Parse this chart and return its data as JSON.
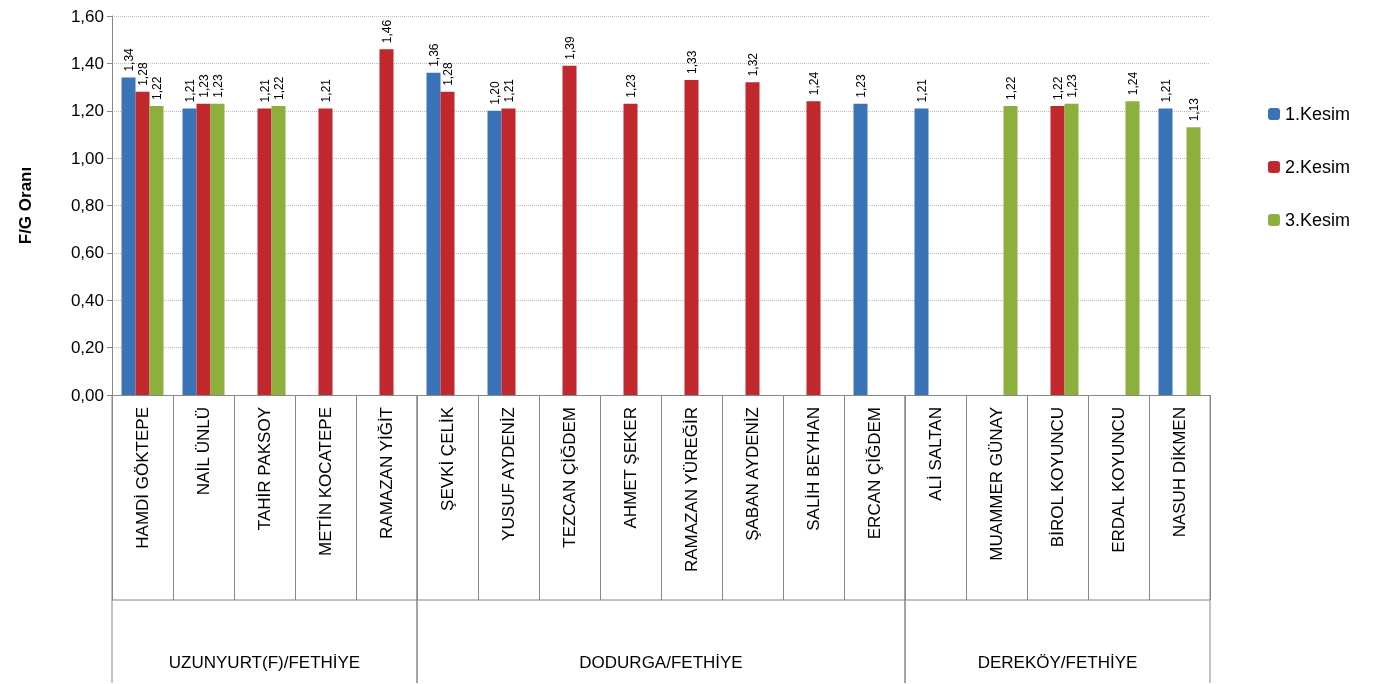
{
  "chart_data": {
    "type": "bar",
    "ylabel": "F/G Oranı",
    "categories": [
      "HAMDİ GÖKTEPE",
      "NAİL ÜNLÜ",
      "TAHİR PAKSOY",
      "METİN KOCATEPE",
      "RAMAZAN YİĞİT",
      "ŞEVKİ ÇELİK",
      "YUSUF AYDENİZ",
      "TEZCAN ÇİĞDEM",
      "AHMET ŞEKER",
      "RAMAZAN YÜREĞİR",
      "ŞABAN AYDENİZ",
      "SALİH BEYHAN",
      "ERCAN ÇİĞDEM",
      "ALİ SALTAN",
      "MUAMMER GÜNAY",
      "BİROL KOYUNCU",
      "ERDAL KOYUNCU",
      "NASUH DİKMEN"
    ],
    "series": [
      {
        "name": "1.Kesim",
        "color": "#3b73b9",
        "values": [
          1.34,
          1.21,
          null,
          null,
          null,
          1.36,
          1.2,
          null,
          null,
          null,
          null,
          null,
          1.23,
          1.21,
          null,
          null,
          null,
          1.21
        ],
        "value_labels": [
          "1,34",
          "1,21",
          null,
          null,
          null,
          "1,36",
          "1,20",
          null,
          null,
          null,
          null,
          null,
          "1,23",
          "1,21",
          null,
          null,
          null,
          "1,21"
        ]
      },
      {
        "name": "2.Kesim",
        "color": "#c0282d",
        "values": [
          1.28,
          1.23,
          1.21,
          1.21,
          1.46,
          1.28,
          1.21,
          1.39,
          1.23,
          1.33,
          1.32,
          1.24,
          null,
          null,
          null,
          1.22,
          null,
          null
        ],
        "value_labels": [
          "1,28",
          "1,23",
          "1,21",
          "1,21",
          "1,46",
          "1,28",
          "1,21",
          "1,39",
          "1,23",
          "1,33",
          "1,32",
          "1,24",
          null,
          null,
          null,
          "1,22",
          null,
          null
        ]
      },
      {
        "name": "3.Kesim",
        "color": "#8db03c",
        "values": [
          1.22,
          1.23,
          1.22,
          null,
          null,
          null,
          null,
          null,
          null,
          null,
          null,
          null,
          null,
          null,
          1.22,
          1.23,
          1.24,
          1.13
        ],
        "value_labels": [
          "1,22",
          "1,23",
          "1,22",
          null,
          null,
          null,
          null,
          null,
          null,
          null,
          null,
          null,
          null,
          null,
          "1,22",
          "1,23",
          "1,24",
          "1,13"
        ]
      }
    ],
    "ylim": [
      0,
      1.6
    ],
    "yticks": [
      {
        "value": 0,
        "label": "0,00"
      },
      {
        "value": 0.2,
        "label": "0,20"
      },
      {
        "value": 0.4,
        "label": "0,40"
      },
      {
        "value": 0.6,
        "label": "0,60"
      },
      {
        "value": 0.8,
        "label": "0,80"
      },
      {
        "value": 1.0,
        "label": "1,00"
      },
      {
        "value": 1.2,
        "label": "1,20"
      },
      {
        "value": 1.4,
        "label": "1,40"
      },
      {
        "value": 1.6,
        "label": "1,60"
      }
    ],
    "grid": "y",
    "legend": "right",
    "annotations": [
      "UZUNYURT(F)/FETHİYE",
      "DODURGA/FETHİYE",
      "DEREKÖY/FETHİYE"
    ]
  }
}
